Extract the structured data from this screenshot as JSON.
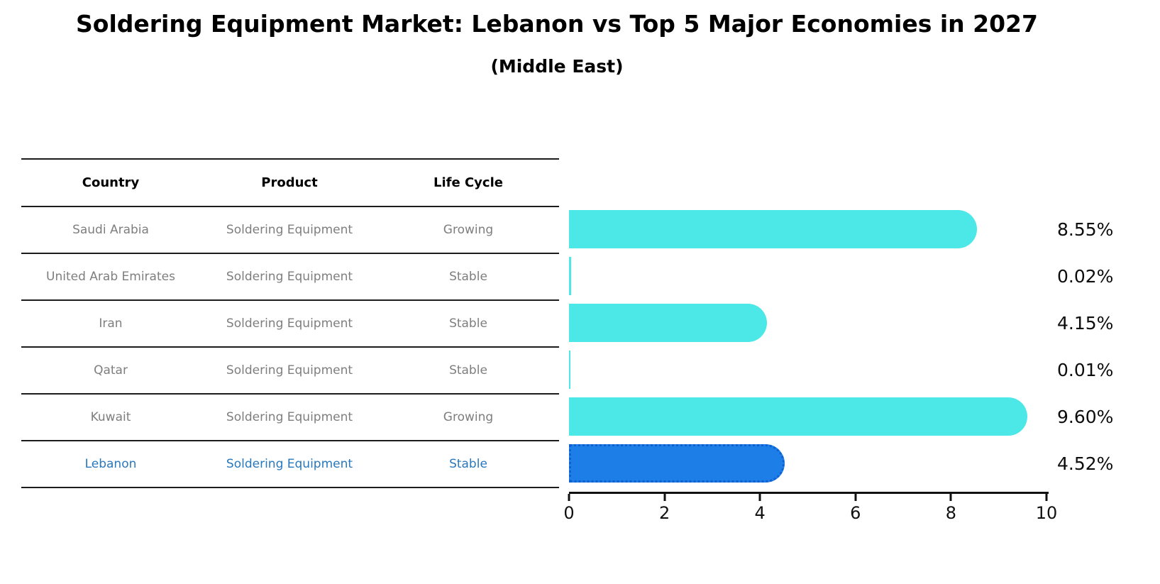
{
  "title": "Soldering Equipment Market: Lebanon vs Top 5 Major Economies in 2027",
  "subtitle": "(Middle East)",
  "table": {
    "headers": [
      "Country",
      "Product",
      "Life Cycle"
    ],
    "rows": [
      {
        "country": "Saudi Arabia",
        "product": "Soldering Equipment",
        "life_cycle": "Growing"
      },
      {
        "country": "United Arab Emirates",
        "product": "Soldering Equipment",
        "life_cycle": "Stable"
      },
      {
        "country": "Iran",
        "product": "Soldering Equipment",
        "life_cycle": "Stable"
      },
      {
        "country": "Qatar",
        "product": "Soldering Equipment",
        "life_cycle": "Stable"
      },
      {
        "country": "Kuwait",
        "product": "Soldering Equipment",
        "life_cycle": "Growing"
      },
      {
        "country": "Lebanon",
        "product": "Soldering Equipment",
        "life_cycle": "Stable"
      }
    ]
  },
  "chart_data": {
    "type": "bar",
    "orientation": "horizontal",
    "categories": [
      "Saudi Arabia",
      "United Arab Emirates",
      "Iran",
      "Qatar",
      "Kuwait",
      "Lebanon"
    ],
    "values": [
      8.55,
      0.02,
      4.15,
      0.01,
      9.6,
      4.52
    ],
    "labels": [
      "8.55%",
      "0.02%",
      "4.15%",
      "0.01%",
      "9.60%",
      "4.52%"
    ],
    "title": "Soldering Equipment Market: Lebanon vs Top 5 Major Economies in 2027 (Middle East)",
    "xlabel": "",
    "ylabel": "",
    "xlim": [
      0,
      10
    ],
    "xticks": [
      0,
      2,
      4,
      6,
      8,
      10
    ],
    "grid": false,
    "legend": false,
    "highlight_index": 5,
    "colors": {
      "bar": "#4ce7e7",
      "highlight": "#1e7ee8",
      "highlight_border": "#0f5fd0",
      "highlight_text": "#2878be"
    }
  }
}
